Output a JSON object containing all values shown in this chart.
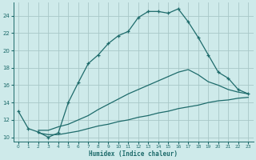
{
  "xlabel": "Humidex (Indice chaleur)",
  "bg_color": "#ceeaea",
  "grid_color": "#a8c8c8",
  "line_color": "#1e6b6b",
  "xlim": [
    -0.5,
    23.5
  ],
  "ylim": [
    9.5,
    25.5
  ],
  "xticks": [
    0,
    1,
    2,
    3,
    4,
    5,
    6,
    7,
    8,
    9,
    10,
    11,
    12,
    13,
    14,
    15,
    16,
    17,
    18,
    19,
    20,
    21,
    22,
    23
  ],
  "yticks": [
    10,
    12,
    14,
    16,
    18,
    20,
    22,
    24
  ],
  "curve1_x": [
    0,
    1,
    2,
    3,
    4,
    5,
    6,
    7,
    8,
    9,
    10,
    11,
    12,
    13,
    14,
    15,
    16,
    17,
    18,
    19,
    20,
    21,
    22,
    23
  ],
  "curve1_y": [
    13.0,
    11.0,
    10.6,
    10.0,
    10.5,
    14.0,
    16.3,
    18.5,
    19.5,
    20.8,
    21.7,
    22.2,
    23.8,
    24.5,
    24.5,
    24.3,
    24.8,
    23.3,
    21.5,
    19.5,
    17.5,
    16.8,
    15.5,
    15.0
  ],
  "curve2_x": [
    2,
    3,
    4,
    5,
    6,
    7,
    8,
    9,
    10,
    11,
    12,
    13,
    14,
    15,
    16,
    17,
    18,
    19,
    20,
    21,
    22,
    23
  ],
  "curve2_y": [
    10.8,
    10.8,
    11.2,
    11.5,
    12.0,
    12.5,
    13.2,
    13.8,
    14.4,
    15.0,
    15.5,
    16.0,
    16.5,
    17.0,
    17.5,
    17.8,
    17.2,
    16.4,
    16.0,
    15.5,
    15.2,
    15.0
  ],
  "curve3_x": [
    2,
    3,
    4,
    5,
    6,
    7,
    8,
    9,
    10,
    11,
    12,
    13,
    14,
    15,
    16,
    17,
    18,
    19,
    20,
    21,
    22,
    23
  ],
  "curve3_y": [
    10.5,
    10.3,
    10.3,
    10.5,
    10.7,
    11.0,
    11.3,
    11.5,
    11.8,
    12.0,
    12.3,
    12.5,
    12.8,
    13.0,
    13.3,
    13.5,
    13.7,
    14.0,
    14.2,
    14.3,
    14.5,
    14.6
  ]
}
